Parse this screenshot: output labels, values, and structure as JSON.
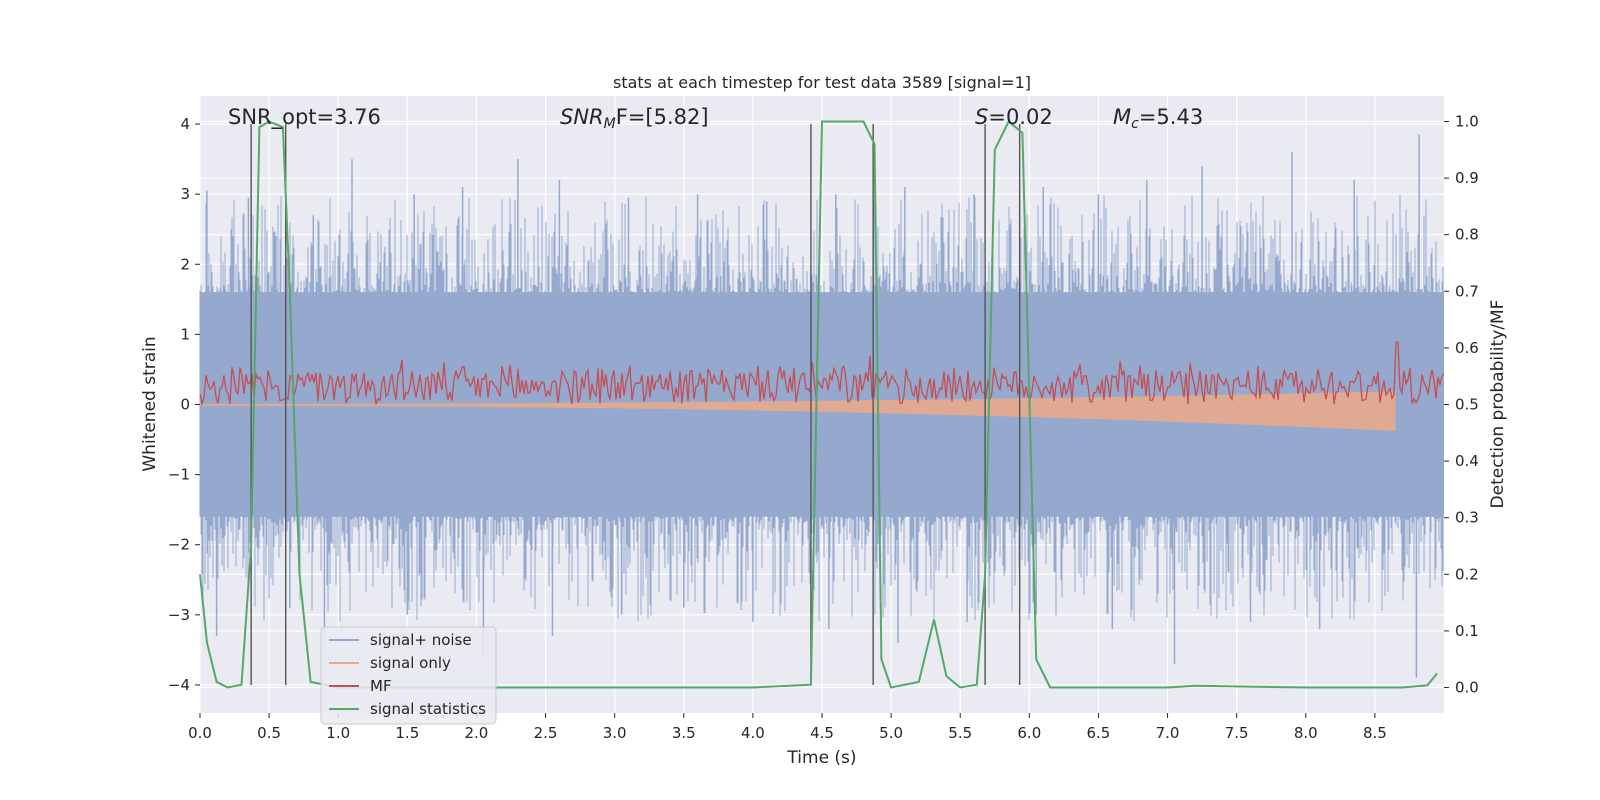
{
  "chart_data": {
    "type": "line",
    "title": "stats at each timestep for test data 3589 [signal=1]",
    "xlabel": "Time (s)",
    "ylabel": "Whitened strain",
    "y2label": "Detection probability/MF",
    "xlim": [
      0,
      9.0
    ],
    "ylim": [
      -4.4,
      4.4
    ],
    "y2lim": [
      -0.045,
      1.045
    ],
    "xticks": [
      "0.0",
      "0.5",
      "1.0",
      "1.5",
      "2.0",
      "2.5",
      "3.0",
      "3.5",
      "4.0",
      "4.5",
      "5.0",
      "5.5",
      "6.0",
      "6.5",
      "7.0",
      "7.5",
      "8.0",
      "8.5"
    ],
    "xtick_values": [
      0,
      0.5,
      1,
      1.5,
      2,
      2.5,
      3,
      3.5,
      4,
      4.5,
      5,
      5.5,
      6,
      6.5,
      7,
      7.5,
      8,
      8.5
    ],
    "yticks": [
      "4",
      "3",
      "2",
      "1",
      "0",
      "−1",
      "−2",
      "−3",
      "−4"
    ],
    "ytick_values": [
      4,
      3,
      2,
      1,
      0,
      -1,
      -2,
      -3,
      -4
    ],
    "y2ticks": [
      "1.0",
      "0.9",
      "0.8",
      "0.7",
      "0.6",
      "0.5",
      "0.4",
      "0.3",
      "0.2",
      "0.1",
      "0.0"
    ],
    "y2tick_values": [
      1.0,
      0.9,
      0.8,
      0.7,
      0.6,
      0.5,
      0.4,
      0.3,
      0.2,
      0.1,
      0.0
    ],
    "grid": true,
    "legend_position": "lower-left",
    "annotations": {
      "snr_opt": "SNR_opt=3.76",
      "snr_mf_main": "SNR",
      "snr_mf_sub": "M",
      "snr_mf_rest": "F=[5.82]",
      "s_main": "S",
      "s_rest": "=0.02",
      "mc_main": "M",
      "mc_sub": "c",
      "mc_rest": "=5.43"
    },
    "series": [
      {
        "name": "signal+ noise",
        "color": "#95a9cf",
        "envelope": "noise band, ±1.6 dense, peaks to about ±3.8",
        "peaks_pos": [
          [
            0.05,
            3.05
          ],
          [
            0.35,
            2.95
          ],
          [
            0.55,
            2.4
          ],
          [
            0.82,
            2.7
          ],
          [
            1.1,
            3.5
          ],
          [
            1.55,
            3.0
          ],
          [
            1.9,
            3.1
          ],
          [
            2.3,
            3.5
          ],
          [
            2.6,
            3.2
          ],
          [
            3.1,
            2.95
          ],
          [
            3.6,
            3.0
          ],
          [
            4.1,
            2.9
          ],
          [
            4.6,
            3.0
          ],
          [
            5.1,
            3.1
          ],
          [
            5.6,
            3.0
          ],
          [
            6.1,
            3.1
          ],
          [
            6.5,
            3.0
          ],
          [
            6.85,
            3.2
          ],
          [
            7.25,
            3.4
          ],
          [
            7.9,
            3.6
          ],
          [
            8.35,
            3.2
          ],
          [
            8.82,
            3.85
          ]
        ],
        "peaks_neg": [
          [
            0.12,
            -3.3
          ],
          [
            0.65,
            -2.9
          ],
          [
            0.9,
            -3.5
          ],
          [
            1.5,
            -3.0
          ],
          [
            2.05,
            -3.6
          ],
          [
            2.55,
            -3.3
          ],
          [
            3.05,
            -3.0
          ],
          [
            3.5,
            -2.9
          ],
          [
            4.0,
            -3.1
          ],
          [
            4.55,
            -3.2
          ],
          [
            5.05,
            -3.4
          ],
          [
            5.55,
            -3.1
          ],
          [
            6.05,
            -3.0
          ],
          [
            6.6,
            -3.2
          ],
          [
            7.05,
            -3.7
          ],
          [
            7.6,
            -3.1
          ],
          [
            8.1,
            -3.2
          ],
          [
            8.8,
            -3.9
          ]
        ]
      },
      {
        "name": "signal only",
        "color": "#e8a98b",
        "chirp": {
          "start": 0.0,
          "end": 8.68,
          "amp_start": 0.02,
          "amp_end": 0.38
        }
      },
      {
        "name": "MF",
        "color": "#c44e52",
        "axis": "right",
        "baseline": 0.53,
        "spread": 0.03,
        "spike": [
          8.66,
          0.61
        ]
      },
      {
        "name": "signal statistics",
        "color": "#55a868",
        "axis": "right",
        "points": [
          [
            0.0,
            0.2
          ],
          [
            0.05,
            0.08
          ],
          [
            0.12,
            0.01
          ],
          [
            0.2,
            0.0
          ],
          [
            0.3,
            0.005
          ],
          [
            0.37,
            0.25
          ],
          [
            0.43,
            0.99
          ],
          [
            0.5,
            1.0
          ],
          [
            0.6,
            0.99
          ],
          [
            0.65,
            0.7
          ],
          [
            0.72,
            0.2
          ],
          [
            0.8,
            0.01
          ],
          [
            1.0,
            0.0
          ],
          [
            2.0,
            0.0
          ],
          [
            3.0,
            0.0
          ],
          [
            4.0,
            0.0
          ],
          [
            4.42,
            0.005
          ],
          [
            4.5,
            1.0
          ],
          [
            4.8,
            1.0
          ],
          [
            4.88,
            0.96
          ],
          [
            4.93,
            0.05
          ],
          [
            5.0,
            0.0
          ],
          [
            5.2,
            0.01
          ],
          [
            5.31,
            0.12
          ],
          [
            5.4,
            0.02
          ],
          [
            5.5,
            0.0
          ],
          [
            5.62,
            0.005
          ],
          [
            5.68,
            0.2
          ],
          [
            5.75,
            0.95
          ],
          [
            5.85,
            1.0
          ],
          [
            5.95,
            0.98
          ],
          [
            6.05,
            0.05
          ],
          [
            6.15,
            0.0
          ],
          [
            7.0,
            0.0
          ],
          [
            7.2,
            0.003
          ],
          [
            8.0,
            0.0
          ],
          [
            8.7,
            0.0
          ],
          [
            8.88,
            0.004
          ],
          [
            8.95,
            0.025
          ]
        ]
      }
    ],
    "vertical_markers": [
      0.37,
      0.62,
      4.42,
      4.87,
      5.68,
      5.93
    ],
    "marker_color": "#555555"
  }
}
